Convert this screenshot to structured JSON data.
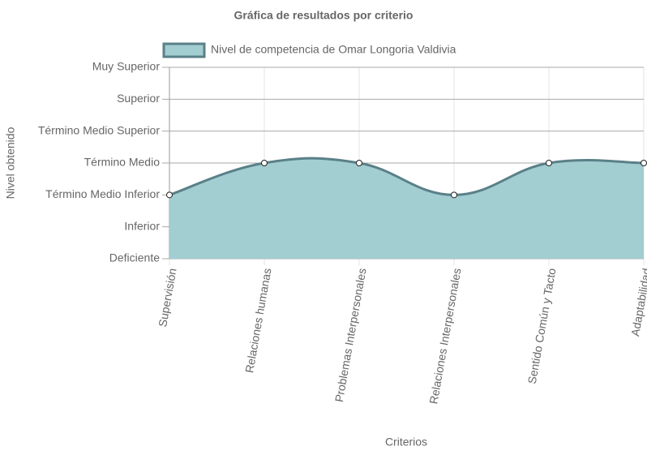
{
  "chart_data": {
    "type": "line",
    "title": "Gráfica de resultados por criterio",
    "x_label": "Criterios",
    "y_label": "Nivel obtenido",
    "categories": [
      "Supervisión",
      "Relaciones humanas",
      "Problemas Interpersonales",
      "Relaciones Interpersonales",
      "Sentido Común y Tacto",
      "Adaptabilidad"
    ],
    "series": [
      {
        "name": "Nivel de competencia de Omar Longoria Valdivia",
        "color": "#5a8088",
        "fill": "#a2cdd1",
        "values": [
          2,
          3,
          3,
          2,
          3,
          3
        ]
      }
    ],
    "ylim": [
      0,
      6
    ],
    "yticks": [
      {
        "value": 0,
        "label": "Deficiente"
      },
      {
        "value": 1,
        "label": "Inferior"
      },
      {
        "value": 2,
        "label": "Término Medio Inferior"
      },
      {
        "value": 3,
        "label": "Término Medio"
      },
      {
        "value": 4,
        "label": "Término Medio Superior"
      },
      {
        "value": 5,
        "label": "Superior"
      },
      {
        "value": 6,
        "label": "Muy Superior"
      }
    ],
    "grid": true,
    "legend": "top"
  }
}
